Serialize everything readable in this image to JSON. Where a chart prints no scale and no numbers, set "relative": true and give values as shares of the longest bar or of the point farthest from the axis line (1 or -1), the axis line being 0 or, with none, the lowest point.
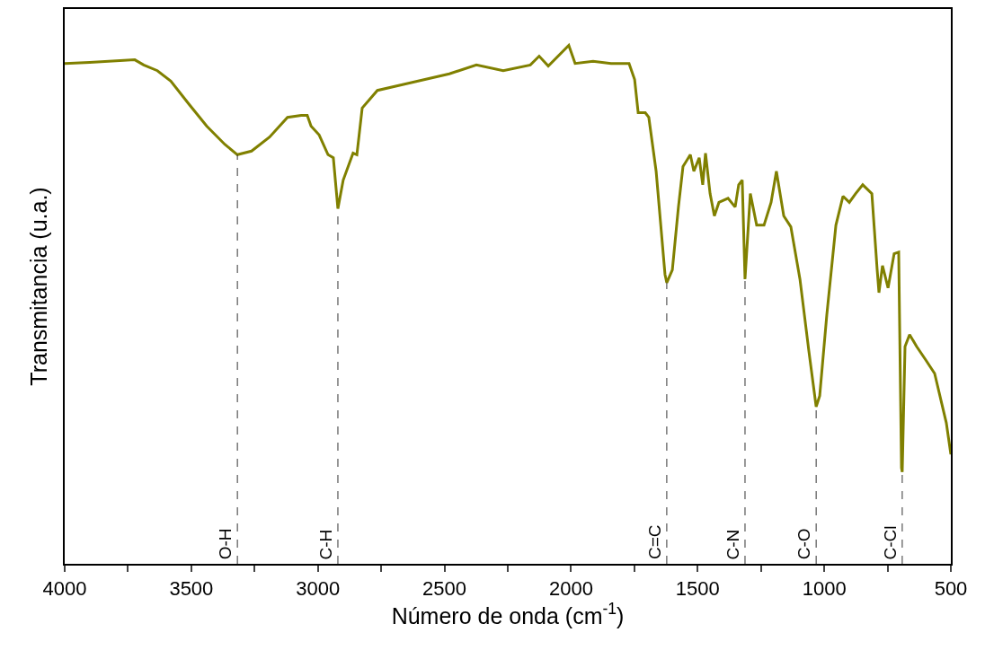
{
  "chart_data": {
    "type": "line",
    "relative": true,
    "xlabel": "Número de onda (cm$^{-1}$)",
    "ylabel": "Transmitancia (u.a.)",
    "xlim": [
      4000,
      500
    ],
    "xticks": [
      4000,
      {
        "value": 3750,
        "label": null
      },
      3500,
      {
        "value": 3250,
        "label": null
      },
      3000,
      {
        "value": 2750,
        "label": null
      },
      2500,
      {
        "value": 2250,
        "label": null
      },
      2000,
      {
        "value": 1750,
        "label": null
      },
      1500,
      {
        "value": 1250,
        "label": null
      },
      1000,
      {
        "value": 750,
        "label": null
      },
      500
    ],
    "tick_labels": "x",
    "marker": "none",
    "line_style": "solid",
    "x": [
      4000,
      3901,
      3723,
      3688,
      3634,
      3581,
      3510,
      3439,
      3368,
      3318,
      3262,
      3191,
      3120,
      3066,
      3042,
      3027,
      2995,
      2960,
      2939,
      2921,
      2900,
      2861,
      2846,
      2825,
      2765,
      2658,
      2481,
      2374,
      2268,
      2161,
      2126,
      2090,
      2009,
      1984,
      1913,
      1842,
      1771,
      1749,
      1735,
      1707,
      1693,
      1664,
      1629,
      1622,
      1600,
      1576,
      1558,
      1529,
      1515,
      1494,
      1480,
      1469,
      1451,
      1434,
      1416,
      1380,
      1352,
      1338,
      1324,
      1313,
      1292,
      1267,
      1238,
      1210,
      1189,
      1160,
      1132,
      1096,
      1061,
      1032,
      1018,
      990,
      954,
      926,
      901,
      876,
      848,
      812,
      791,
      784,
      770,
      748,
      724,
      706,
      695,
      692,
      681,
      663,
      635,
      599,
      564,
      535,
      518,
      500
    ],
    "series": [
      {
        "color": "#808000",
        "values": [
          0.965,
          0.967,
          0.972,
          0.962,
          0.951,
          0.931,
          0.887,
          0.844,
          0.809,
          0.789,
          0.796,
          0.823,
          0.861,
          0.865,
          0.865,
          0.844,
          0.827,
          0.789,
          0.783,
          0.685,
          0.74,
          0.792,
          0.789,
          0.879,
          0.913,
          0.925,
          0.945,
          0.962,
          0.951,
          0.962,
          0.979,
          0.96,
          1.0,
          0.965,
          0.969,
          0.965,
          0.965,
          0.934,
          0.87,
          0.87,
          0.861,
          0.757,
          0.558,
          0.542,
          0.567,
          0.688,
          0.766,
          0.789,
          0.757,
          0.783,
          0.731,
          0.792,
          0.714,
          0.671,
          0.697,
          0.705,
          0.688,
          0.731,
          0.74,
          0.549,
          0.714,
          0.653,
          0.653,
          0.697,
          0.757,
          0.671,
          0.65,
          0.549,
          0.411,
          0.303,
          0.324,
          0.48,
          0.653,
          0.709,
          0.697,
          0.714,
          0.731,
          0.714,
          0.567,
          0.523,
          0.575,
          0.532,
          0.598,
          0.601,
          0.185,
          0.177,
          0.419,
          0.442,
          0.419,
          0.393,
          0.367,
          0.307,
          0.272,
          0.211
        ]
      }
    ],
    "ref_lines": [
      {
        "axis": "x",
        "value": 3318,
        "label": "O-H",
        "color": "#333333",
        "line_style": "dashed"
      },
      {
        "axis": "x",
        "value": 2921,
        "label": "C-H",
        "color": "#333333",
        "line_style": "dashed"
      },
      {
        "axis": "x",
        "value": 1622,
        "label": "C=C",
        "color": "#333333",
        "line_style": "dashed"
      },
      {
        "axis": "x",
        "value": 1313,
        "label": "C-N",
        "color": "#333333",
        "line_style": "dashed"
      },
      {
        "axis": "x",
        "value": 1032,
        "label": "C-O",
        "color": "#333333",
        "line_style": "dashed"
      },
      {
        "axis": "x",
        "value": 692,
        "label": "C-Cl",
        "color": "#333333",
        "line_style": "dashed"
      }
    ]
  }
}
